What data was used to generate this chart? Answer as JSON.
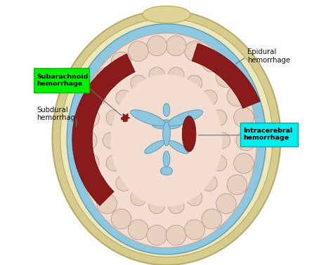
{
  "background_color": "#ffffff",
  "skull_color": "#d6cc8e",
  "skull_edge_color": "#b8aa6a",
  "csf_color": "#8dc8e0",
  "brain_color": "#f2ddd0",
  "brain_edge_color": "#c8a898",
  "gyri_color": "#e8cfc0",
  "gyri_edge_color": "#b09080",
  "hemorrhage_color": "#8b1a1a",
  "ventricle_color": "#8dc8e0",
  "ventricle_edge": "#5a9ab8",
  "nose_color": "#e0d498",
  "nose_edge": "#c0b060",
  "label_epidural": "Epidural\nhemorrhage",
  "label_subarachnoid": "Subarachnoid\nhemorrhage",
  "label_subdural": "Subdural\nhemorrhage",
  "label_intracerebral": "Intracerebral\nhemorrhage",
  "green_box": "#00ee00",
  "cyan_box": "#00eeee",
  "line_color": "#707070",
  "figsize": [
    4.74,
    3.78
  ],
  "dpi": 100
}
